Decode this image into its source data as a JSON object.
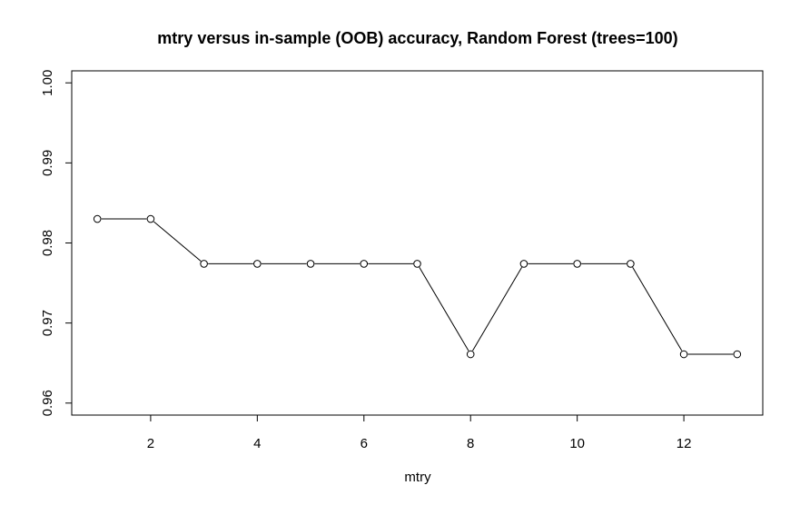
{
  "chart_data": {
    "type": "line",
    "title": "mtry versus in-sample (OOB) accuracy, Random Forest (trees=100)",
    "xlabel": "mtry",
    "ylabel": "",
    "x": [
      1,
      2,
      3,
      4,
      5,
      6,
      7,
      8,
      9,
      10,
      11,
      12,
      13
    ],
    "series": [
      {
        "values": [
          0.983,
          0.983,
          0.9774,
          0.9774,
          0.9774,
          0.9774,
          0.9774,
          0.9661,
          0.9774,
          0.9774,
          0.9774,
          0.9661,
          0.9661
        ]
      }
    ],
    "xlim": [
      0.52,
      13.48
    ],
    "ylim": [
      0.9585,
      1.0015
    ],
    "xticks": [
      2,
      4,
      6,
      8,
      10,
      12
    ],
    "xtick_labels": [
      "2",
      "4",
      "6",
      "8",
      "10",
      "12"
    ],
    "yticks": [
      0.96,
      0.97,
      0.98,
      0.99,
      1.0
    ],
    "ytick_labels": [
      "0.96",
      "0.97",
      "0.98",
      "0.99",
      "1.00"
    ],
    "grid": false,
    "markers": "open-circle",
    "line_color": "#000000"
  }
}
